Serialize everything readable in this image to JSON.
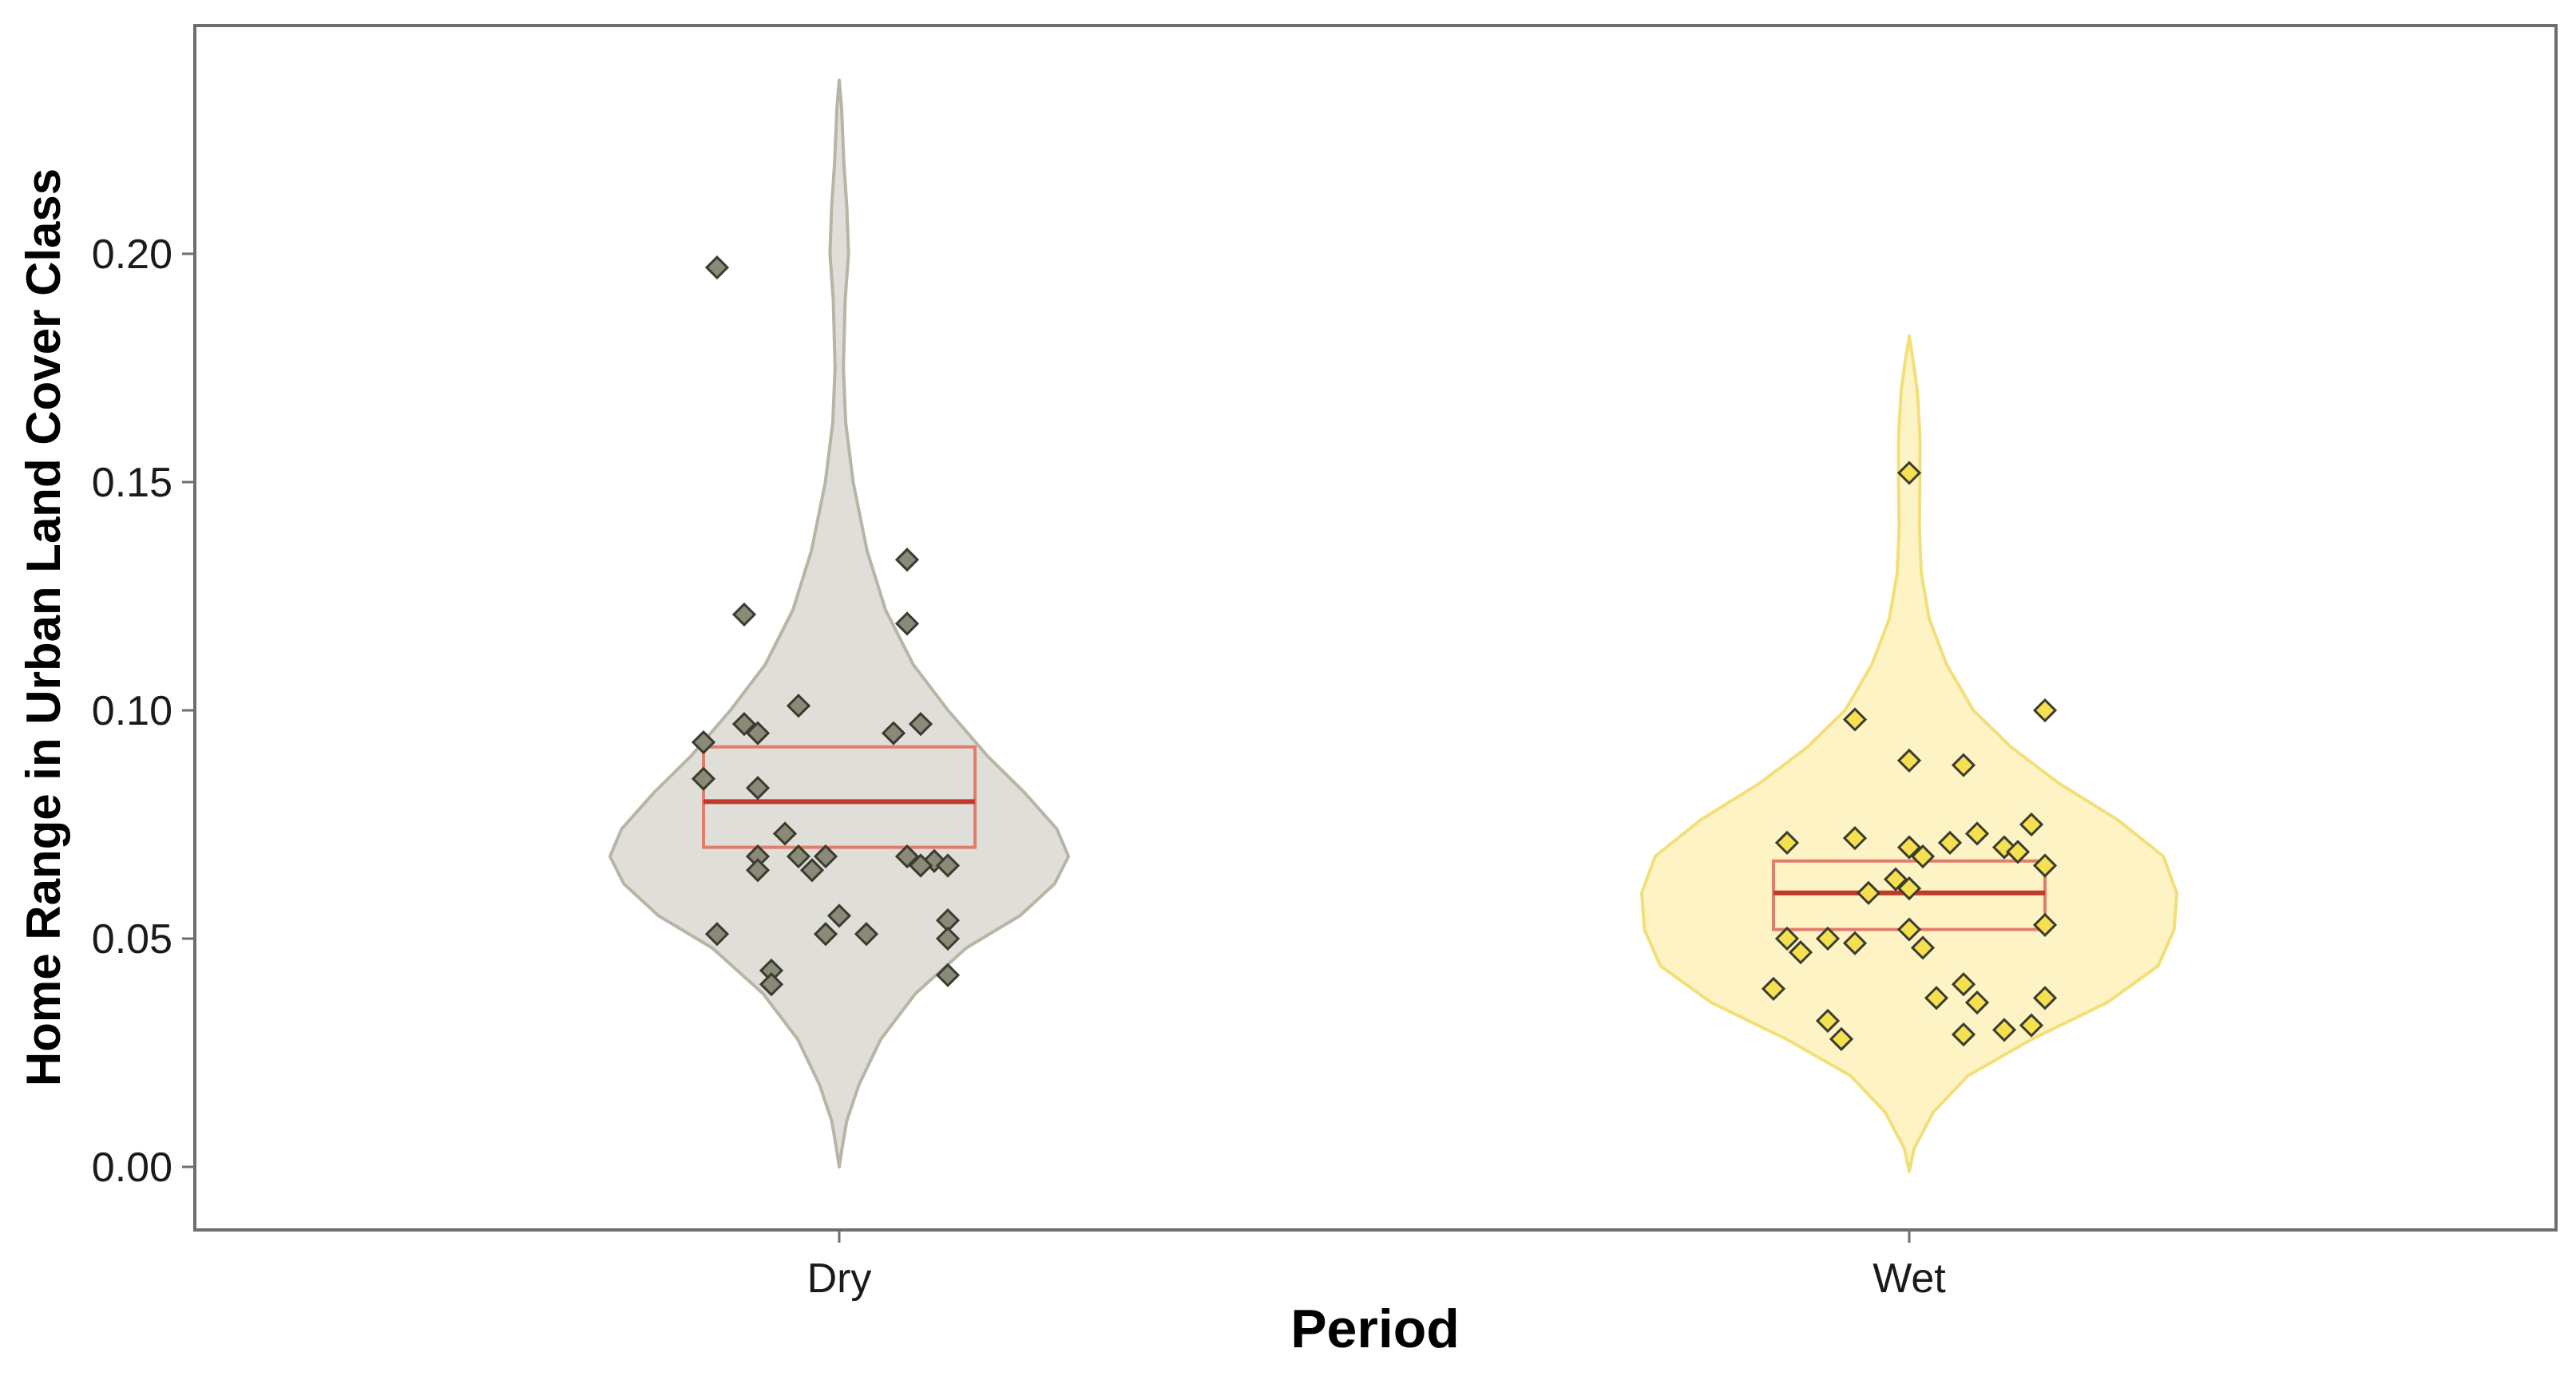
{
  "chart_data": {
    "type": "violin",
    "title": "",
    "xlabel": "Period",
    "ylabel": "Home Range in Urban Land Cover Class",
    "ylim": [
      -0.013,
      0.25
    ],
    "yticks": [
      0.0,
      0.05,
      0.1,
      0.15,
      0.2
    ],
    "ytick_labels": [
      "0.00",
      "0.05",
      "0.10",
      "0.15",
      "0.20"
    ],
    "grid": false,
    "legend": "none",
    "categories": [
      "Dry",
      "Wet"
    ],
    "series": [
      {
        "name": "Dry",
        "fill": "#dfded8",
        "stroke": "#b8b5a6",
        "point_color": "#8a8a78",
        "violin_range": [
          0.0,
          0.238
        ],
        "violin_profile": [
          [
            0.0,
            0.0
          ],
          [
            0.004,
            0.012
          ],
          [
            0.01,
            0.032
          ],
          [
            0.018,
            0.085
          ],
          [
            0.028,
            0.18
          ],
          [
            0.038,
            0.33
          ],
          [
            0.048,
            0.55
          ],
          [
            0.055,
            0.78
          ],
          [
            0.062,
            0.93
          ],
          [
            0.068,
            0.99
          ],
          [
            0.074,
            0.94
          ],
          [
            0.082,
            0.8
          ],
          [
            0.09,
            0.64
          ],
          [
            0.1,
            0.47
          ],
          [
            0.11,
            0.32
          ],
          [
            0.122,
            0.2
          ],
          [
            0.135,
            0.12
          ],
          [
            0.15,
            0.06
          ],
          [
            0.163,
            0.028
          ],
          [
            0.175,
            0.018
          ],
          [
            0.19,
            0.026
          ],
          [
            0.2,
            0.04
          ],
          [
            0.21,
            0.033
          ],
          [
            0.22,
            0.02
          ],
          [
            0.232,
            0.01
          ],
          [
            0.238,
            0.0
          ]
        ],
        "box": {
          "q1": 0.07,
          "median": 0.08,
          "q3": 0.092
        },
        "points": [
          [
            -0.09,
            0.197
          ],
          [
            0.05,
            0.133
          ],
          [
            -0.07,
            0.121
          ],
          [
            0.05,
            0.119
          ],
          [
            -0.03,
            0.101
          ],
          [
            -0.07,
            0.097
          ],
          [
            -0.06,
            0.095
          ],
          [
            0.04,
            0.095
          ],
          [
            0.06,
            0.097
          ],
          [
            -0.1,
            0.093
          ],
          [
            -0.1,
            0.085
          ],
          [
            -0.06,
            0.083
          ],
          [
            -0.04,
            0.073
          ],
          [
            -0.06,
            0.068
          ],
          [
            -0.03,
            0.068
          ],
          [
            -0.01,
            0.068
          ],
          [
            -0.06,
            0.065
          ],
          [
            -0.02,
            0.065
          ],
          [
            0.05,
            0.068
          ],
          [
            0.07,
            0.067
          ],
          [
            0.06,
            0.066
          ],
          [
            0.08,
            0.066
          ],
          [
            0.0,
            0.055
          ],
          [
            0.08,
            0.054
          ],
          [
            -0.09,
            0.051
          ],
          [
            -0.01,
            0.051
          ],
          [
            0.02,
            0.051
          ],
          [
            0.08,
            0.05
          ],
          [
            -0.05,
            0.043
          ],
          [
            -0.05,
            0.04
          ],
          [
            0.08,
            0.042
          ]
        ]
      },
      {
        "name": "Wet",
        "fill": "#fdf3c4",
        "stroke": "#f2df78",
        "point_color": "#f5e050",
        "violin_range": [
          -0.001,
          0.182
        ],
        "violin_profile": [
          [
            -0.001,
            0.0
          ],
          [
            0.004,
            0.018
          ],
          [
            0.012,
            0.09
          ],
          [
            0.02,
            0.22
          ],
          [
            0.028,
            0.46
          ],
          [
            0.036,
            0.74
          ],
          [
            0.044,
            0.93
          ],
          [
            0.052,
            0.99
          ],
          [
            0.06,
            1.0
          ],
          [
            0.068,
            0.95
          ],
          [
            0.076,
            0.78
          ],
          [
            0.084,
            0.56
          ],
          [
            0.092,
            0.38
          ],
          [
            0.1,
            0.24
          ],
          [
            0.11,
            0.14
          ],
          [
            0.12,
            0.075
          ],
          [
            0.13,
            0.045
          ],
          [
            0.14,
            0.038
          ],
          [
            0.15,
            0.04
          ],
          [
            0.16,
            0.04
          ],
          [
            0.17,
            0.03
          ],
          [
            0.176,
            0.016
          ],
          [
            0.182,
            0.0
          ]
        ],
        "box": {
          "q1": 0.052,
          "median": 0.06,
          "q3": 0.067
        },
        "points": [
          [
            0.0,
            0.152
          ],
          [
            0.1,
            0.1
          ],
          [
            -0.04,
            0.098
          ],
          [
            0.0,
            0.089
          ],
          [
            0.04,
            0.088
          ],
          [
            -0.09,
            0.071
          ],
          [
            -0.04,
            0.072
          ],
          [
            0.0,
            0.07
          ],
          [
            0.01,
            0.068
          ],
          [
            0.03,
            0.071
          ],
          [
            0.05,
            0.073
          ],
          [
            0.07,
            0.07
          ],
          [
            0.09,
            0.075
          ],
          [
            0.08,
            0.069
          ],
          [
            0.1,
            0.066
          ],
          [
            -0.01,
            0.063
          ],
          [
            0.0,
            0.061
          ],
          [
            -0.09,
            0.05
          ],
          [
            -0.06,
            0.05
          ],
          [
            -0.04,
            0.049
          ],
          [
            -0.08,
            0.047
          ],
          [
            0.0,
            0.052
          ],
          [
            0.01,
            0.048
          ],
          [
            -0.03,
            0.06
          ],
          [
            0.1,
            0.053
          ],
          [
            -0.1,
            0.039
          ],
          [
            0.04,
            0.04
          ],
          [
            0.02,
            0.037
          ],
          [
            0.05,
            0.036
          ],
          [
            0.1,
            0.037
          ],
          [
            -0.06,
            0.032
          ],
          [
            -0.05,
            0.028
          ],
          [
            0.04,
            0.029
          ],
          [
            0.07,
            0.03
          ],
          [
            0.09,
            0.031
          ]
        ]
      }
    ]
  }
}
